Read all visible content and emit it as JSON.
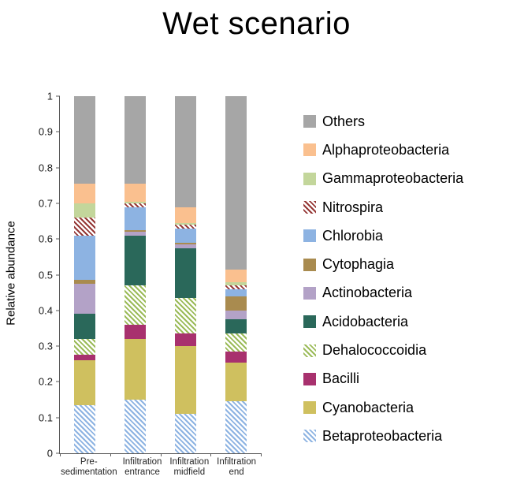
{
  "title": "Wet scenario",
  "chart_data": {
    "type": "bar",
    "stacked": true,
    "title": "Wet scenario",
    "xlabel": "",
    "ylabel": "Relative abundance",
    "ylim": [
      0,
      1
    ],
    "grid": false,
    "legend_position": "right",
    "ytick_labels": [
      "0",
      "0.1",
      "0.2",
      "0.3",
      "0.4",
      "0.5",
      "0.6",
      "0.7",
      "0.8",
      "0.9",
      "1"
    ],
    "categories": [
      "Pre-sedimentation",
      "Infiltration entrance",
      "Infiltration midfield",
      "Infiltration end"
    ],
    "series": [
      {
        "name": "Betaproteobacteria",
        "color": "#8db3e2",
        "pattern": "diagonal-hatch",
        "values": [
          0.135,
          0.15,
          0.11,
          0.145
        ]
      },
      {
        "name": "Cyanobacteria",
        "color": "#cfc05f",
        "pattern": "solid",
        "values": [
          0.125,
          0.17,
          0.19,
          0.11
        ]
      },
      {
        "name": "Bacilli",
        "color": "#a8316e",
        "pattern": "solid",
        "values": [
          0.015,
          0.04,
          0.035,
          0.03
        ]
      },
      {
        "name": "Dehalococcoidia",
        "color": "#9bbb59",
        "pattern": "diagonal-hatch",
        "values": [
          0.045,
          0.11,
          0.1,
          0.05
        ]
      },
      {
        "name": "Acidobacteria",
        "color": "#2a685a",
        "pattern": "solid",
        "values": [
          0.07,
          0.14,
          0.14,
          0.04
        ]
      },
      {
        "name": "Actinobacteria",
        "color": "#b3a2c7",
        "pattern": "solid",
        "values": [
          0.085,
          0.01,
          0.01,
          0.025
        ]
      },
      {
        "name": "Cytophagia",
        "color": "#a98b4f",
        "pattern": "solid",
        "values": [
          0.01,
          0.005,
          0.005,
          0.04
        ]
      },
      {
        "name": "Chlorobia",
        "color": "#8db3e2",
        "pattern": "solid",
        "values": [
          0.125,
          0.065,
          0.04,
          0.02
        ]
      },
      {
        "name": "Nitrospira",
        "color": "#953735",
        "pattern": "diagonal-hatch",
        "values": [
          0.05,
          0.01,
          0.01,
          0.01
        ]
      },
      {
        "name": "Gammaproteobacteria",
        "color": "#c3d69b",
        "pattern": "solid",
        "values": [
          0.04,
          0.005,
          0.005,
          0.01
        ]
      },
      {
        "name": "Alphaproteobacteria",
        "color": "#fac08f",
        "pattern": "solid",
        "values": [
          0.055,
          0.05,
          0.045,
          0.035
        ]
      },
      {
        "name": "Others",
        "color": "#a6a6a6",
        "pattern": "solid",
        "values": [
          0.245,
          0.245,
          0.31,
          0.485
        ]
      }
    ],
    "legend_order_top_to_bottom": [
      "Others",
      "Alphaproteobacteria",
      "Gammaproteobacteria",
      "Nitrospira",
      "Chlorobia",
      "Cytophagia",
      "Actinobacteria",
      "Acidobacteria",
      "Dehalococcoidia",
      "Bacilli",
      "Cyanobacteria",
      "Betaproteobacteria"
    ]
  }
}
